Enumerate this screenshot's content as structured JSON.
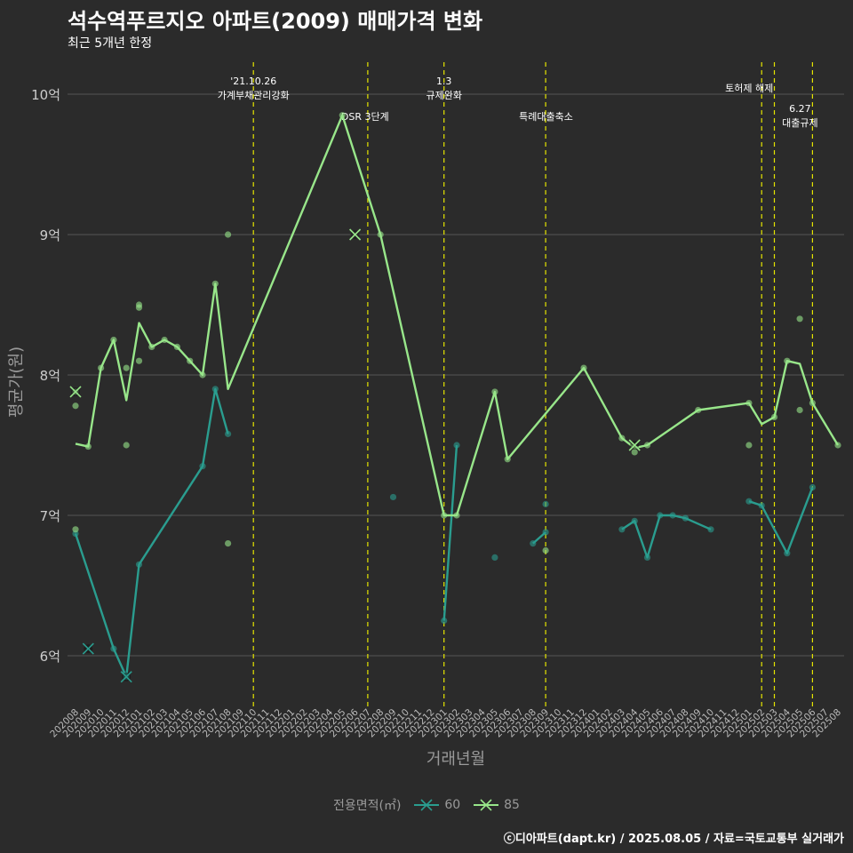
{
  "header": {
    "title": "석수역푸르지오 아파트(2009) 매매가격 변화",
    "subtitle": "최근 5개년 한정"
  },
  "caption": "ⓒ디아파트(dapt.kr) / 2025.08.05 / 자료=국토교통부 실거래가",
  "colors": {
    "background": "#2b2b2b",
    "grid": "#555555",
    "event_line": "#e6e600",
    "series_60": "#2a9d8f",
    "series_85": "#98e68a"
  },
  "chart_data": {
    "type": "line",
    "title": "석수역푸르지오 아파트(2009) 매매가격 변화",
    "subtitle": "최근 5개년 한정",
    "xlabel": "거래년월",
    "ylabel": "평균가(원)",
    "ylim": [
      5.65,
      10.25
    ],
    "y_ticks": [
      6,
      7,
      8,
      9,
      10
    ],
    "y_tick_labels": [
      "6억",
      "7억",
      "8억",
      "9억",
      "10억"
    ],
    "grid": "horizontal",
    "legend": {
      "title": "전용면적(㎡)",
      "position": "bottom",
      "entries": [
        "60",
        "85"
      ]
    },
    "x_categories": [
      "202008",
      "202009",
      "202010",
      "202011",
      "202012",
      "202101",
      "202102",
      "202103",
      "202104",
      "202105",
      "202106",
      "202107",
      "202108",
      "202109",
      "202110",
      "202111",
      "202112",
      "202201",
      "202202",
      "202203",
      "202204",
      "202205",
      "202206",
      "202207",
      "202208",
      "202209",
      "202210",
      "202211",
      "202212",
      "202301",
      "202302",
      "202303",
      "202304",
      "202305",
      "202306",
      "202307",
      "202308",
      "202309",
      "202310",
      "202311",
      "202312",
      "202401",
      "202402",
      "202403",
      "202404",
      "202405",
      "202406",
      "202407",
      "202408",
      "202409",
      "202410",
      "202411",
      "202412",
      "202501",
      "202502",
      "202503",
      "202504",
      "202505",
      "202506",
      "202507",
      "202508"
    ],
    "events": [
      {
        "x": 14,
        "label": "'21.10.26\n가계부채관리강화",
        "label_row": 0
      },
      {
        "x": 23,
        "label": "DSR 3단계",
        "label_row": 1
      },
      {
        "x": 29,
        "label": "1.3\n규제완화",
        "label_row": 0
      },
      {
        "x": 37,
        "label": "특례대출축소",
        "label_row": 1
      },
      {
        "x": 54,
        "label": "토허제 해제",
        "label_row": 0
      },
      {
        "x": 55,
        "label": "",
        "label_row": 0
      },
      {
        "x": 58,
        "label": "6.27\n대출규제",
        "label_row": 2
      }
    ],
    "series": [
      {
        "name": "60",
        "line": [
          [
            0,
            6.87
          ],
          [
            3,
            6.05
          ],
          [
            4,
            5.85
          ],
          [
            5,
            6.65
          ],
          [
            10,
            7.35
          ],
          [
            11,
            7.9
          ],
          [
            12,
            7.58
          ],
          null,
          [
            29,
            6.25
          ],
          [
            30,
            7.5
          ],
          null,
          [
            36,
            6.8
          ],
          [
            37,
            6.88
          ],
          null,
          [
            43,
            6.9
          ],
          [
            44,
            6.96
          ],
          [
            45,
            6.7
          ],
          [
            46,
            7.0
          ],
          [
            47,
            7.0
          ],
          [
            48,
            6.98
          ],
          [
            50,
            6.9
          ],
          null,
          [
            53,
            7.1
          ],
          [
            54,
            7.07
          ],
          [
            56,
            6.73
          ],
          [
            58,
            7.2
          ]
        ],
        "points": [
          [
            0,
            6.87
          ],
          [
            3,
            6.05
          ],
          [
            4,
            5.85
          ],
          [
            5,
            6.65
          ],
          [
            10,
            7.35
          ],
          [
            11,
            7.9
          ],
          [
            12,
            7.58
          ],
          [
            25,
            7.13
          ],
          [
            29,
            6.25
          ],
          [
            30,
            7.5
          ],
          [
            33,
            6.7
          ],
          [
            36,
            6.8
          ],
          [
            37,
            6.88
          ],
          [
            37,
            7.08
          ],
          [
            43,
            6.9
          ],
          [
            44,
            6.96
          ],
          [
            45,
            6.7
          ],
          [
            46,
            7.0
          ],
          [
            47,
            7.0
          ],
          [
            48,
            6.98
          ],
          [
            50,
            6.9
          ],
          [
            53,
            7.1
          ],
          [
            54,
            7.07
          ],
          [
            56,
            6.73
          ],
          [
            58,
            7.2
          ]
        ],
        "x_marks": [
          [
            1,
            6.05
          ],
          [
            4,
            5.85
          ]
        ]
      },
      {
        "name": "85",
        "line": [
          [
            0,
            7.51
          ],
          [
            1,
            7.49
          ],
          [
            2,
            8.05
          ],
          [
            3,
            8.25
          ],
          [
            4,
            7.82
          ],
          [
            5,
            8.37
          ],
          [
            6,
            8.2
          ],
          [
            7,
            8.25
          ],
          [
            8,
            8.2
          ],
          [
            9,
            8.1
          ],
          [
            10,
            8.0
          ],
          [
            11,
            8.65
          ],
          [
            12,
            7.9
          ],
          [
            21,
            9.85
          ],
          [
            24,
            9.0
          ],
          [
            29,
            7.0
          ],
          [
            30,
            7.0
          ],
          [
            33,
            7.88
          ],
          [
            34,
            7.4
          ],
          [
            40,
            8.05
          ],
          [
            43,
            7.55
          ],
          [
            44,
            7.48
          ],
          [
            45,
            7.5
          ],
          [
            49,
            7.75
          ],
          [
            53,
            7.8
          ],
          [
            54,
            7.65
          ],
          [
            55,
            7.7
          ],
          [
            56,
            8.1
          ],
          [
            57,
            8.08
          ],
          [
            58,
            7.8
          ],
          [
            60,
            7.5
          ]
        ],
        "points": [
          [
            0,
            7.88
          ],
          [
            0,
            7.78
          ],
          [
            0,
            6.9
          ],
          [
            1,
            7.49
          ],
          [
            2,
            8.05
          ],
          [
            3,
            8.25
          ],
          [
            4,
            8.05
          ],
          [
            4,
            7.5
          ],
          [
            5,
            8.5
          ],
          [
            5,
            8.48
          ],
          [
            5,
            8.1
          ],
          [
            6,
            8.2
          ],
          [
            7,
            8.25
          ],
          [
            8,
            8.2
          ],
          [
            9,
            8.1
          ],
          [
            10,
            8.0
          ],
          [
            11,
            8.65
          ],
          [
            12,
            9.0
          ],
          [
            12,
            6.8
          ],
          [
            21,
            9.85
          ],
          [
            24,
            9.0
          ],
          [
            29,
            7.0
          ],
          [
            30,
            7.0
          ],
          [
            33,
            7.88
          ],
          [
            34,
            7.4
          ],
          [
            37,
            6.75
          ],
          [
            40,
            8.05
          ],
          [
            43,
            7.55
          ],
          [
            44,
            7.45
          ],
          [
            45,
            7.5
          ],
          [
            49,
            7.75
          ],
          [
            53,
            7.8
          ],
          [
            53,
            7.5
          ],
          [
            55,
            7.7
          ],
          [
            56,
            8.1
          ],
          [
            57,
            8.4
          ],
          [
            57,
            7.75
          ],
          [
            58,
            7.8
          ],
          [
            60,
            7.5
          ]
        ],
        "x_marks": [
          [
            0,
            7.88
          ],
          [
            22,
            9.0
          ],
          [
            44,
            7.5
          ]
        ]
      }
    ]
  }
}
